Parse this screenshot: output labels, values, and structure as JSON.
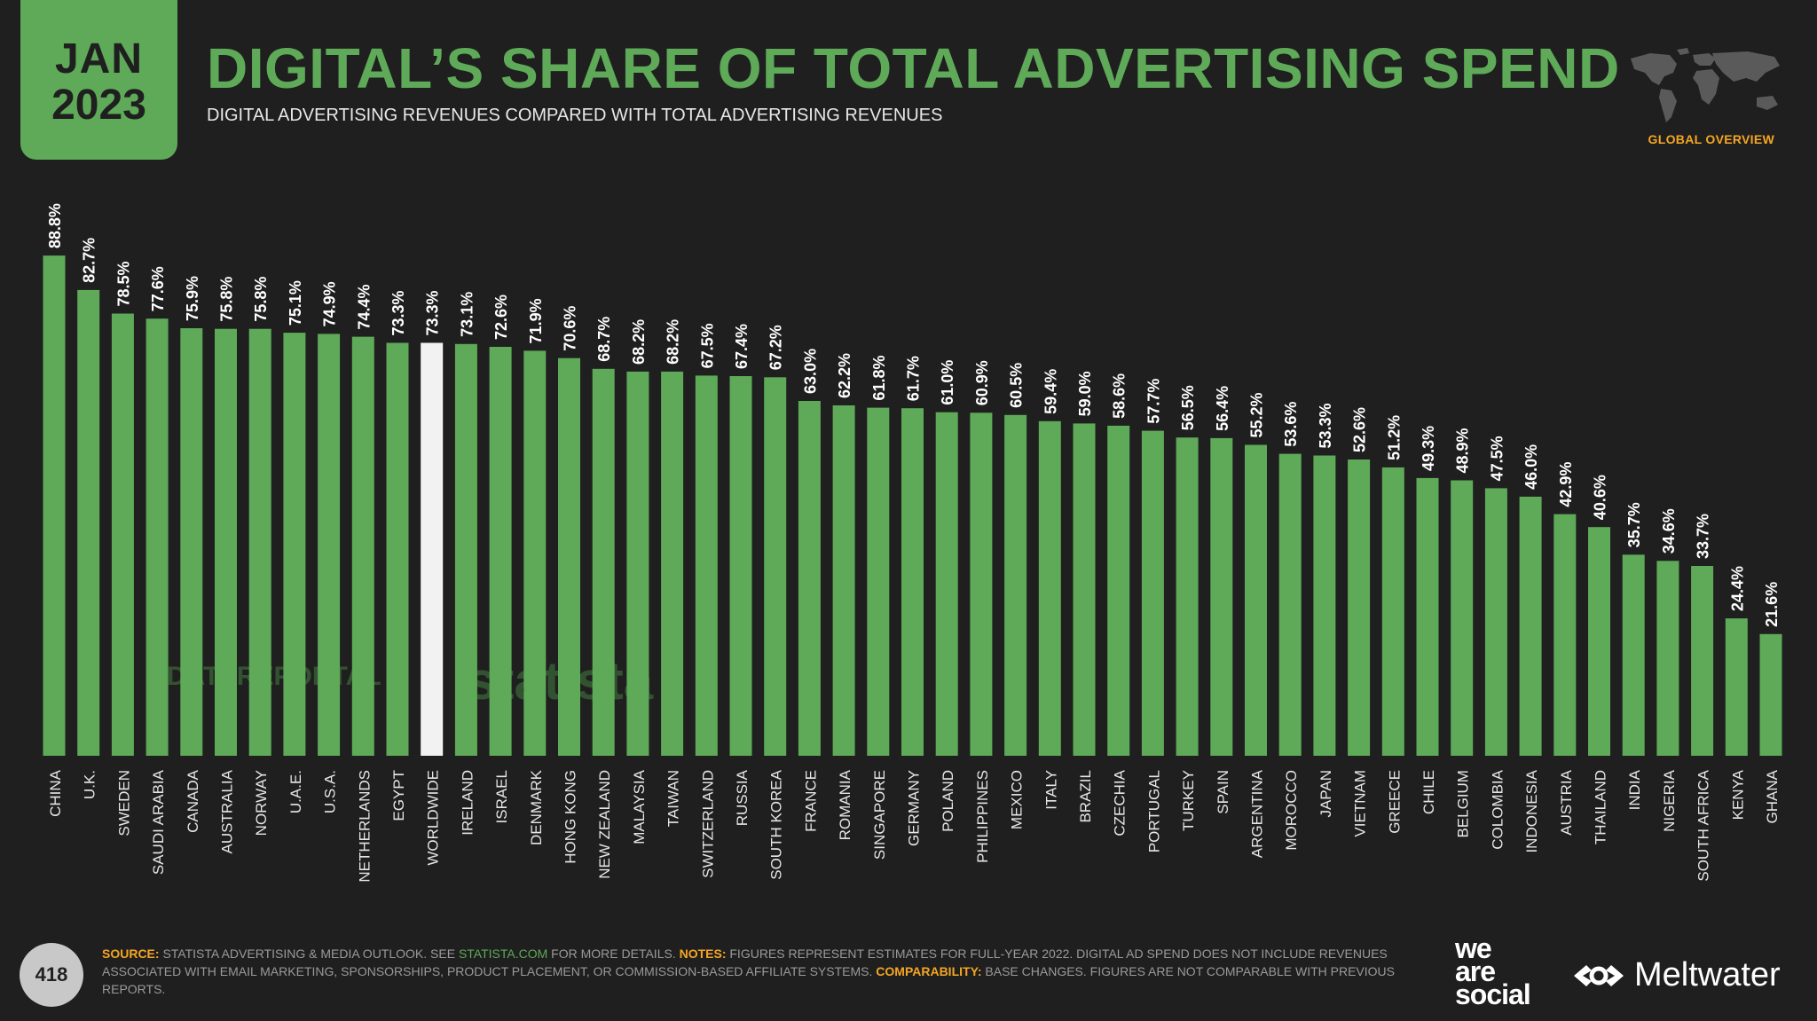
{
  "header": {
    "date_month": "JAN",
    "date_year": "2023",
    "title": "DIGITAL’S SHARE OF TOTAL ADVERTISING SPEND",
    "subtitle": "DIGITAL ADVERTISING REVENUES COMPARED WITH TOTAL ADVERTISING REVENUES",
    "section_label": "GLOBAL OVERVIEW",
    "map_icon": "world-map-icon"
  },
  "watermarks": {
    "datareportal": "DATAREPORTAL",
    "statista": "statista"
  },
  "colors": {
    "bar": "#5eaa58",
    "highlight_bar": "#f2f2f2",
    "accent": "#f5a623",
    "background": "#1f1f1f"
  },
  "chart_data": {
    "type": "bar",
    "highlight": "WORLDWIDE",
    "ylim": [
      0,
      100
    ],
    "categories": [
      "CHINA",
      "U.K.",
      "SWEDEN",
      "SAUDI ARABIA",
      "CANADA",
      "AUSTRALIA",
      "NORWAY",
      "U.A.E.",
      "U.S.A.",
      "NETHERLANDS",
      "EGYPT",
      "WORLDWIDE",
      "IRELAND",
      "ISRAEL",
      "DENMARK",
      "HONG KONG",
      "NEW ZEALAND",
      "MALAYSIA",
      "TAIWAN",
      "SWITZERLAND",
      "RUSSIA",
      "SOUTH KOREA",
      "FRANCE",
      "ROMANIA",
      "SINGAPORE",
      "GERMANY",
      "POLAND",
      "PHILIPPINES",
      "MEXICO",
      "ITALY",
      "BRAZIL",
      "CZECHIA",
      "PORTUGAL",
      "TURKEY",
      "SPAIN",
      "ARGENTINA",
      "MOROCCO",
      "JAPAN",
      "VIETNAM",
      "GREECE",
      "CHILE",
      "BELGIUM",
      "COLOMBIA",
      "INDONESIA",
      "AUSTRIA",
      "THAILAND",
      "INDIA",
      "NIGERIA",
      "SOUTH AFRICA",
      "KENYA",
      "GHANA"
    ],
    "values": [
      88.8,
      82.7,
      78.5,
      77.6,
      75.9,
      75.8,
      75.8,
      75.1,
      74.9,
      74.4,
      73.3,
      73.3,
      73.1,
      72.6,
      71.9,
      70.6,
      68.7,
      68.2,
      68.2,
      67.5,
      67.4,
      67.2,
      63.0,
      62.2,
      61.8,
      61.7,
      61.0,
      60.9,
      60.5,
      59.4,
      59.0,
      58.6,
      57.7,
      56.5,
      56.4,
      55.2,
      53.6,
      53.3,
      52.6,
      51.2,
      49.3,
      48.9,
      47.5,
      46.0,
      42.9,
      40.6,
      35.7,
      34.6,
      33.7,
      24.4,
      21.6
    ],
    "labels": [
      "88.8%",
      "82.7%",
      "78.5%",
      "77.6%",
      "75.9%",
      "75.8%",
      "75.8%",
      "75.1%",
      "74.9%",
      "74.4%",
      "73.3%",
      "73.3%",
      "73.1%",
      "72.6%",
      "71.9%",
      "70.6%",
      "68.7%",
      "68.2%",
      "68.2%",
      "67.5%",
      "67.4%",
      "67.2%",
      "63.0%",
      "62.2%",
      "61.8%",
      "61.7%",
      "61.0%",
      "60.9%",
      "60.5%",
      "59.4%",
      "59.0%",
      "58.6%",
      "57.7%",
      "56.5%",
      "56.4%",
      "55.2%",
      "53.6%",
      "53.3%",
      "52.6%",
      "51.2%",
      "49.3%",
      "48.9%",
      "47.5%",
      "46.0%",
      "42.9%",
      "40.6%",
      "35.7%",
      "34.6%",
      "33.7%",
      "24.4%",
      "21.6%"
    ]
  },
  "footer": {
    "page_number": "418",
    "source_key": "SOURCE:",
    "source_text": " STATISTA ADVERTISING & MEDIA OUTLOOK. SEE ",
    "source_link": "STATISTA.COM",
    "source_tail": " FOR MORE DETAILS. ",
    "notes_key": "NOTES:",
    "notes_text": " FIGURES REPRESENT ESTIMATES FOR FULL-YEAR 2022. DIGITAL AD SPEND DOES NOT INCLUDE REVENUES ASSOCIATED WITH EMAIL MARKETING, SPONSORSHIPS, PRODUCT PLACEMENT, OR COMMISSION-BASED AFFILIATE SYSTEMS. ",
    "comparability_key": "COMPARABILITY:",
    "comparability_text": " BASE CHANGES. FIGURES ARE NOT COMPARABLE WITH PREVIOUS REPORTS.",
    "brand_we": "we",
    "brand_are": "are",
    "brand_social": "social",
    "brand_meltwater": "Meltwater"
  }
}
